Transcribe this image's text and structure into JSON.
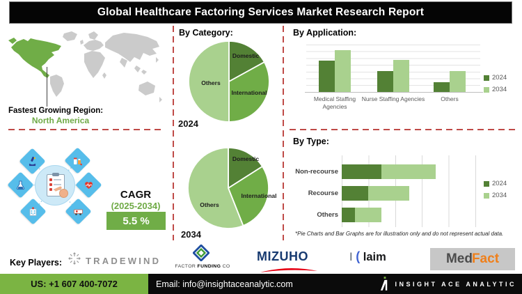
{
  "title": "Global Healthcare Factoring Services Market Research Report",
  "map": {
    "label": "Fastest Growing Region:",
    "region": "North America",
    "highlight_color": "#70AD47",
    "land_color": "#CBCBCB"
  },
  "cagr": {
    "label": "CAGR",
    "period": "(2025-2034)",
    "value": "5.5 %",
    "box_color": "#70AD47"
  },
  "chart_data": [
    {
      "type": "pie",
      "title": "By Category:",
      "year": "2024",
      "slices": [
        {
          "label": "Domestic",
          "value": 17,
          "color": "#538135"
        },
        {
          "label": "International",
          "value": 33,
          "color": "#70AD47"
        },
        {
          "label": "Others",
          "value": 50,
          "color": "#A9D18E"
        }
      ]
    },
    {
      "type": "pie",
      "year": "2034",
      "slices": [
        {
          "label": "Domestic",
          "value": 16,
          "color": "#538135"
        },
        {
          "label": "International",
          "value": 28,
          "color": "#70AD47"
        },
        {
          "label": "Others",
          "value": 56,
          "color": "#A9D18E"
        }
      ]
    },
    {
      "type": "bar",
      "title": "By Application:",
      "categories": [
        "Medical Staffing Agencies",
        "Nurse Staffing Agencies",
        "Others"
      ],
      "series": [
        {
          "name": "2024",
          "color": "#538135",
          "values": [
            66,
            44,
            21
          ]
        },
        {
          "name": "2034",
          "color": "#A9D18E",
          "values": [
            88,
            67,
            44
          ]
        }
      ],
      "ylim": [
        0,
        100
      ],
      "grid": true,
      "legend_position": "right"
    },
    {
      "type": "bar-horizontal-stacked",
      "title": "By Type:",
      "categories": [
        "Non-recourse",
        "Recourse",
        "Others"
      ],
      "series": [
        {
          "name": "2024",
          "color": "#538135",
          "values": [
            27,
            18,
            9
          ]
        },
        {
          "name": "2034",
          "color": "#A9D18E",
          "values": [
            37,
            28,
            18
          ]
        }
      ],
      "xlim": [
        0,
        100
      ],
      "grid": true,
      "legend_position": "right",
      "note": "*Pie Charts and Bar Graphs are for illustration only and do not represent actual data."
    }
  ],
  "key_players": {
    "label": "Key Players:",
    "tradewind": {
      "name": "TRADEWIND"
    },
    "factor_funding": {
      "word1": "FACTOR",
      "word2": "FUNDING",
      "word3": "CO"
    },
    "mizuho": {
      "name": "MIZUHO"
    },
    "klaim": {
      "prefix": "I",
      "paren": "(",
      "rest": "laim"
    },
    "medfact": {
      "part1": "Med",
      "part2": "Fact"
    }
  },
  "footer": {
    "phone": "US: +1 607 400-7072",
    "email": "Email: info@insightaceanalytic.com",
    "brand": "INSIGHT ACE ANALYTIC"
  }
}
